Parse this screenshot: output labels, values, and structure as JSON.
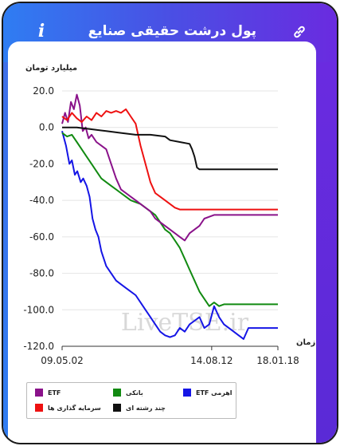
{
  "header": {
    "title": "پول درشت حقیقی صنایع",
    "icons": {
      "info": "info-icon",
      "edit": "pencil-icon",
      "link": "link-icon"
    },
    "gradient": [
      "#2f7df2",
      "#6a2be0"
    ]
  },
  "watermark": "LiveTSE.ir",
  "chart_data": {
    "type": "line",
    "ylabel": "میلیارد تومان",
    "xlabel": "زمان",
    "ylim": [
      -120,
      20
    ],
    "yticks": [
      "20.0",
      "0.0",
      "-20.0",
      "-40.0",
      "-60.0",
      "-80.0",
      "-100.0",
      "-120.0"
    ],
    "xticks": [
      "09.05.02",
      "14.08.12",
      "18.01.18"
    ],
    "grid": "horizontal",
    "legend_position": "bottom",
    "series": [
      {
        "name": "ETF اهرمی",
        "color": "#1515e6",
        "points": [
          [
            0,
            -2
          ],
          [
            0.8,
            -10
          ],
          [
            1.5,
            -20
          ],
          [
            2,
            -18
          ],
          [
            2.6,
            -26
          ],
          [
            3.1,
            -24
          ],
          [
            3.8,
            -30
          ],
          [
            4.3,
            -28
          ],
          [
            5,
            -32
          ],
          [
            5.6,
            -38
          ],
          [
            6.2,
            -50
          ],
          [
            6.8,
            -56
          ],
          [
            7.4,
            -60
          ],
          [
            8,
            -68
          ],
          [
            9,
            -76
          ],
          [
            10,
            -80
          ],
          [
            11,
            -84
          ],
          [
            12,
            -86
          ],
          [
            13,
            -88
          ],
          [
            14,
            -90
          ],
          [
            15,
            -92
          ],
          [
            16,
            -96
          ],
          [
            17,
            -100
          ],
          [
            18,
            -104
          ],
          [
            19,
            -108
          ],
          [
            20,
            -112
          ],
          [
            21,
            -114
          ],
          [
            22,
            -115
          ],
          [
            23,
            -114
          ],
          [
            24,
            -110
          ],
          [
            25,
            -112
          ],
          [
            26,
            -108
          ],
          [
            27,
            -106
          ],
          [
            28,
            -104
          ],
          [
            29,
            -110
          ],
          [
            30,
            -108
          ],
          [
            31,
            -98
          ],
          [
            32,
            -104
          ],
          [
            33,
            -108
          ],
          [
            34,
            -110
          ],
          [
            35,
            -112
          ],
          [
            36,
            -114
          ],
          [
            37,
            -116
          ],
          [
            38,
            -110
          ],
          [
            44,
            -110
          ]
        ]
      },
      {
        "name": "بانکی",
        "color": "#118a11",
        "points": [
          [
            0,
            -3
          ],
          [
            1,
            -5
          ],
          [
            2,
            -4
          ],
          [
            3,
            -8
          ],
          [
            4,
            -12
          ],
          [
            5,
            -16
          ],
          [
            6,
            -20
          ],
          [
            7,
            -24
          ],
          [
            8,
            -28
          ],
          [
            9,
            -30
          ],
          [
            10,
            -32
          ],
          [
            11,
            -34
          ],
          [
            12,
            -36
          ],
          [
            13,
            -38
          ],
          [
            14,
            -40
          ],
          [
            15,
            -41
          ],
          [
            16,
            -42
          ],
          [
            17,
            -44
          ],
          [
            18,
            -46
          ],
          [
            19,
            -48
          ],
          [
            20,
            -52
          ],
          [
            21,
            -56
          ],
          [
            22,
            -58
          ],
          [
            23,
            -62
          ],
          [
            24,
            -66
          ],
          [
            25,
            -72
          ],
          [
            26,
            -78
          ],
          [
            27,
            -84
          ],
          [
            28,
            -90
          ],
          [
            29,
            -94
          ],
          [
            30,
            -98
          ],
          [
            31,
            -96
          ],
          [
            32,
            -98
          ],
          [
            33,
            -97
          ],
          [
            44,
            -97
          ]
        ]
      },
      {
        "name": "ETF",
        "color": "#8a128a",
        "points": [
          [
            0,
            2
          ],
          [
            0.6,
            8
          ],
          [
            1.2,
            3
          ],
          [
            1.8,
            14
          ],
          [
            2.4,
            10
          ],
          [
            3,
            18
          ],
          [
            3.6,
            12
          ],
          [
            4.2,
            -2
          ],
          [
            4.8,
            0
          ],
          [
            5.4,
            -6
          ],
          [
            6,
            -4
          ],
          [
            7,
            -8
          ],
          [
            8,
            -10
          ],
          [
            9,
            -12
          ],
          [
            10,
            -20
          ],
          [
            11,
            -28
          ],
          [
            12,
            -34
          ],
          [
            13,
            -36
          ],
          [
            14,
            -38
          ],
          [
            15,
            -40
          ],
          [
            16,
            -42
          ],
          [
            17,
            -44
          ],
          [
            18,
            -46
          ],
          [
            19,
            -50
          ],
          [
            20,
            -52
          ],
          [
            21,
            -54
          ],
          [
            22,
            -56
          ],
          [
            23,
            -58
          ],
          [
            24,
            -60
          ],
          [
            25,
            -62
          ],
          [
            26,
            -58
          ],
          [
            27,
            -56
          ],
          [
            28,
            -54
          ],
          [
            29,
            -50
          ],
          [
            30,
            -49
          ],
          [
            31,
            -48
          ],
          [
            44,
            -48
          ]
        ]
      },
      {
        "name": "سرمایه گذاری ها",
        "color": "#ee1111",
        "points": [
          [
            0,
            6
          ],
          [
            1,
            4
          ],
          [
            2,
            8
          ],
          [
            3,
            5
          ],
          [
            4,
            3
          ],
          [
            5,
            6
          ],
          [
            6,
            4
          ],
          [
            7,
            8
          ],
          [
            8,
            6
          ],
          [
            9,
            9
          ],
          [
            10,
            8
          ],
          [
            11,
            9
          ],
          [
            12,
            8
          ],
          [
            13,
            10
          ],
          [
            14,
            6
          ],
          [
            15,
            2
          ],
          [
            16,
            -10
          ],
          [
            17,
            -20
          ],
          [
            18,
            -30
          ],
          [
            19,
            -36
          ],
          [
            20,
            -38
          ],
          [
            21,
            -40
          ],
          [
            22,
            -42
          ],
          [
            23,
            -44
          ],
          [
            24,
            -45
          ],
          [
            44,
            -45
          ]
        ]
      },
      {
        "name": "چند رشته ای",
        "color": "#111111",
        "points": [
          [
            0,
            0
          ],
          [
            3,
            0
          ],
          [
            6,
            -1
          ],
          [
            9,
            -2
          ],
          [
            12,
            -3
          ],
          [
            15,
            -4
          ],
          [
            18,
            -4
          ],
          [
            21,
            -5
          ],
          [
            22,
            -7
          ],
          [
            24,
            -8
          ],
          [
            26,
            -9
          ],
          [
            26.5,
            -12
          ],
          [
            27,
            -16
          ],
          [
            27.5,
            -22
          ],
          [
            28,
            -23
          ],
          [
            29,
            -23
          ],
          [
            44,
            -23
          ]
        ]
      }
    ]
  }
}
